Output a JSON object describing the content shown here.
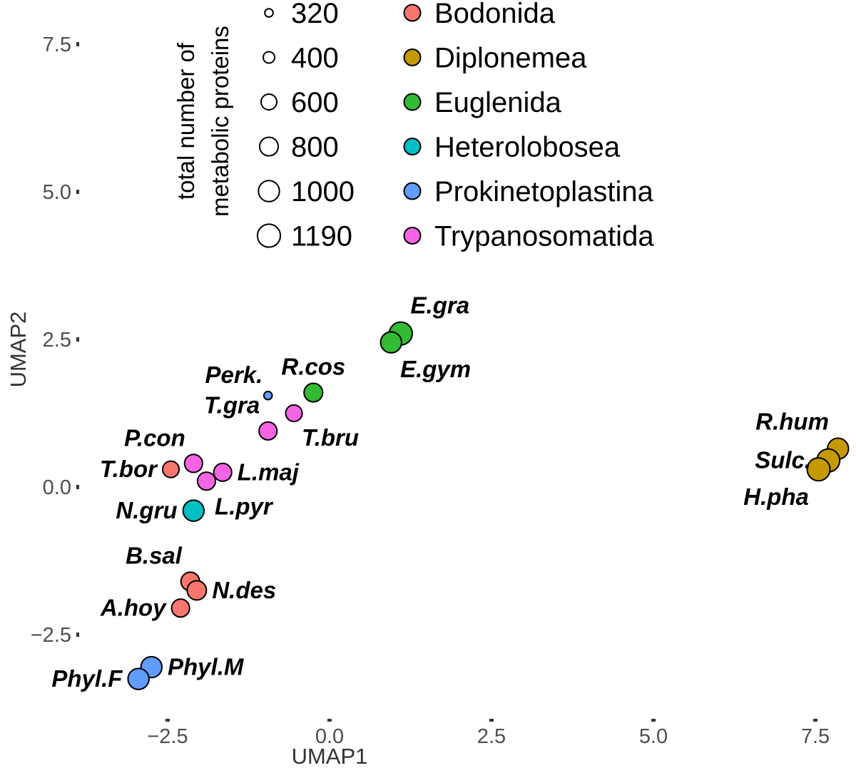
{
  "chart_data": {
    "type": "scatter",
    "title": "",
    "xlabel": "UMAP1",
    "ylabel": "UMAP2",
    "xlim": [
      -3.2,
      8.0
    ],
    "ylim": [
      -3.4,
      8.0
    ],
    "xticks": [
      -2.5,
      0.0,
      2.5,
      5.0,
      7.5
    ],
    "xtick_labels": [
      "−2.5",
      "0.0",
      "2.5",
      "5.0",
      "7.5"
    ],
    "yticks": [
      -2.5,
      0.0,
      2.5,
      5.0,
      7.5
    ],
    "ytick_labels": [
      "−2.5",
      "0.0",
      "2.5",
      "5.0",
      "7.5"
    ],
    "grid": false,
    "size_legend": {
      "title_lines": [
        "total number of",
        "metabolic proteins"
      ],
      "values": [
        320,
        400,
        600,
        800,
        1000,
        1190
      ],
      "labels": [
        "320",
        "400",
        "600",
        "800",
        "1000",
        "1190"
      ]
    },
    "color_legend": {
      "entries": [
        {
          "name": "Bodonida",
          "color": "#f8766d"
        },
        {
          "name": "Diplonemea",
          "color": "#c49a00"
        },
        {
          "name": "Euglenida",
          "color": "#33bb33"
        },
        {
          "name": "Heterolobosea",
          "color": "#00bfc4"
        },
        {
          "name": "Prokinetoplastina",
          "color": "#619cff"
        },
        {
          "name": "Trypanosomatida",
          "color": "#f564e3"
        }
      ]
    },
    "points": [
      {
        "label": "E.gra",
        "group": "Euglenida",
        "x": 1.1,
        "y": 2.6,
        "size": 1190,
        "label_pos": "above-right"
      },
      {
        "label": "E.gym",
        "group": "Euglenida",
        "x": 0.95,
        "y": 2.45,
        "size": 1000,
        "label_pos": "below-right"
      },
      {
        "label": "R.cos",
        "group": "Euglenida",
        "x": -0.25,
        "y": 1.6,
        "size": 800,
        "label_pos": "above"
      },
      {
        "label": "Perk.",
        "group": "Prokinetoplastina",
        "x": -0.95,
        "y": 1.55,
        "size": 320,
        "label_pos": "above-left"
      },
      {
        "label": "T.bru",
        "group": "Trypanosomatida",
        "x": -0.55,
        "y": 1.25,
        "size": 650,
        "label_pos": "below-right"
      },
      {
        "label": "T.gra",
        "group": "Trypanosomatida",
        "x": -0.95,
        "y": 0.95,
        "size": 750,
        "label_pos": "above-left"
      },
      {
        "label": "P.con",
        "group": "Trypanosomatida",
        "x": -2.1,
        "y": 0.4,
        "size": 750,
        "label_pos": "above-left"
      },
      {
        "label": "L.maj",
        "group": "Trypanosomatida",
        "x": -1.65,
        "y": 0.25,
        "size": 750,
        "label_pos": "right"
      },
      {
        "label": "L.pyr",
        "group": "Trypanosomatida",
        "x": -1.9,
        "y": 0.1,
        "size": 750,
        "label_pos": "below-right"
      },
      {
        "label": "T.bor",
        "group": "Bodonida",
        "x": -2.45,
        "y": 0.3,
        "size": 650,
        "label_pos": "left"
      },
      {
        "label": "N.gru",
        "group": "Heterolobosea",
        "x": -2.1,
        "y": -0.4,
        "size": 1000,
        "label_pos": "left"
      },
      {
        "label": "B.sal",
        "group": "Bodonida",
        "x": -2.15,
        "y": -1.6,
        "size": 800,
        "label_pos": "above-left"
      },
      {
        "label": "N.des",
        "group": "Bodonida",
        "x": -2.05,
        "y": -1.75,
        "size": 850,
        "label_pos": "right"
      },
      {
        "label": "A.hoy",
        "group": "Bodonida",
        "x": -2.3,
        "y": -2.05,
        "size": 750,
        "label_pos": "left"
      },
      {
        "label": "Phyl.M",
        "group": "Prokinetoplastina",
        "x": -2.75,
        "y": -3.05,
        "size": 1000,
        "label_pos": "right"
      },
      {
        "label": "Phyl.F",
        "group": "Prokinetoplastina",
        "x": -2.95,
        "y": -3.25,
        "size": 1000,
        "label_pos": "left"
      },
      {
        "label": "R.hum",
        "group": "Diplonemea",
        "x": 7.85,
        "y": 0.65,
        "size": 1000,
        "label_pos": "above-left"
      },
      {
        "label": "Sulc.",
        "group": "Diplonemea",
        "x": 7.7,
        "y": 0.45,
        "size": 1190,
        "label_pos": "left"
      },
      {
        "label": "H.pha",
        "group": "Diplonemea",
        "x": 7.55,
        "y": 0.3,
        "size": 1190,
        "label_pos": "below-left"
      }
    ]
  }
}
